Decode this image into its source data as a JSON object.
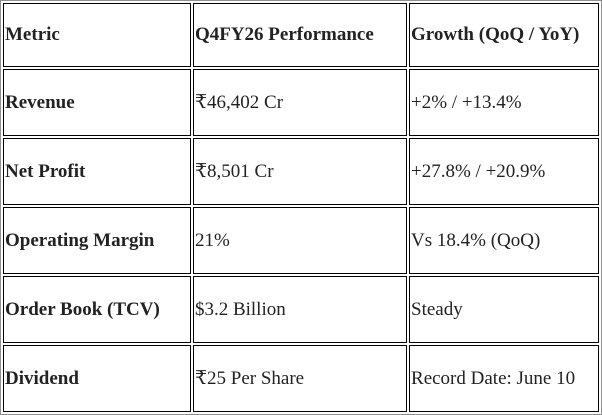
{
  "table": {
    "headers": [
      "Metric",
      "Q4FY26 Performance",
      "Growth (QoQ / YoY)"
    ],
    "rows": [
      {
        "metric": "Revenue",
        "performance": "₹46,402 Cr",
        "growth": "+2% / +13.4%"
      },
      {
        "metric": "Net Profit",
        "performance": "₹8,501 Cr",
        "growth": "+27.8% / +20.9%"
      },
      {
        "metric": "Operating Margin",
        "performance": "21%",
        "growth": "Vs 18.4% (QoQ)"
      },
      {
        "metric": "Order Book (TCV)",
        "performance": "$3.2 Billion",
        "growth": "Steady"
      },
      {
        "metric": "Dividend",
        "performance": "₹25 Per Share",
        "growth": "Record Date: June 10"
      }
    ]
  }
}
